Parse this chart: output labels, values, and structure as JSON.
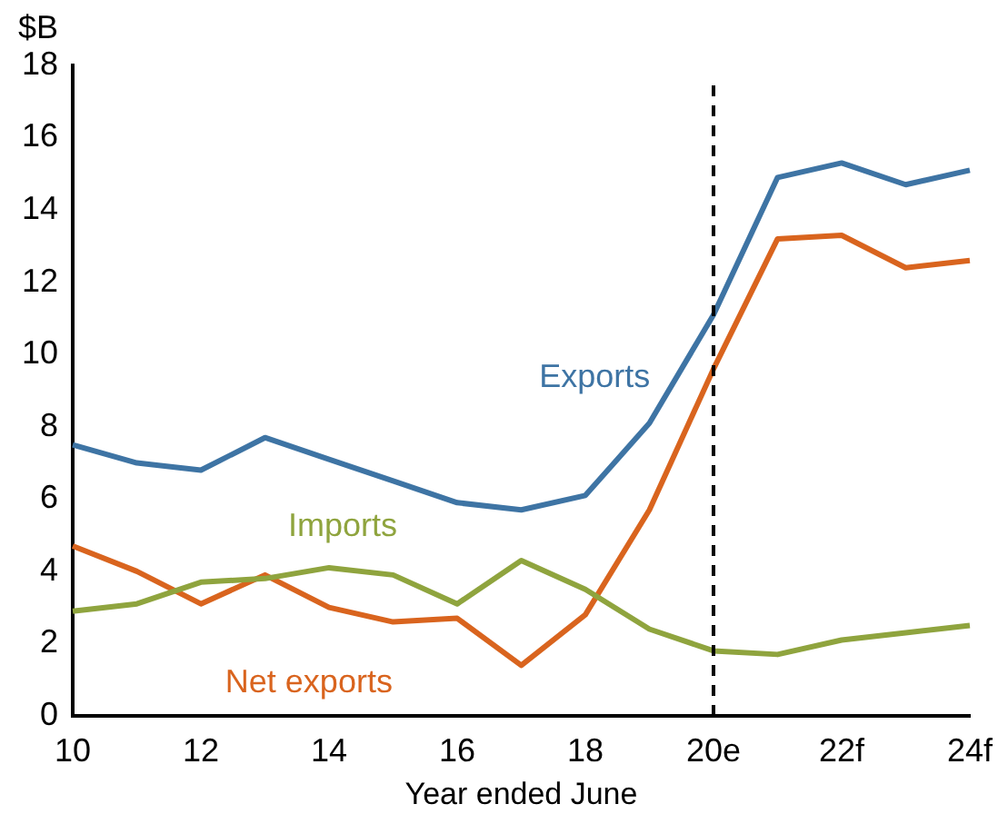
{
  "chart_data": {
    "type": "line",
    "ylabel": "$B",
    "xlabel": "Year ended June",
    "categories": [
      "10",
      null,
      "12",
      null,
      "14",
      null,
      "16",
      null,
      "18",
      null,
      "20e",
      null,
      "22f",
      null,
      "24f"
    ],
    "series": [
      {
        "name": "Exports",
        "color": "#3e74a4",
        "values": [
          7.5,
          7.0,
          6.8,
          7.7,
          7.1,
          6.5,
          5.9,
          5.7,
          6.1,
          8.1,
          11.1,
          14.9,
          15.3,
          14.7,
          15.1
        ]
      },
      {
        "name": "Imports",
        "color": "#8fa43e",
        "values": [
          2.9,
          3.1,
          3.7,
          3.8,
          4.1,
          3.9,
          3.1,
          4.3,
          3.5,
          2.4,
          1.8,
          1.7,
          2.1,
          2.3,
          2.5
        ]
      },
      {
        "name": "Net exports",
        "color": "#d9641e",
        "values": [
          4.7,
          4.0,
          3.1,
          3.9,
          3.0,
          2.6,
          2.7,
          1.4,
          2.8,
          5.7,
          9.6,
          13.2,
          13.3,
          12.4,
          12.6
        ]
      }
    ],
    "ylim": [
      0,
      18
    ],
    "yticks": [
      0,
      2,
      4,
      6,
      8,
      10,
      12,
      14,
      16,
      18
    ],
    "grid": false,
    "legend": false,
    "marker": "none",
    "line_style": "solid",
    "ref_lines": [
      {
        "axis": "x",
        "value": "20e",
        "line_style": "dashed",
        "color": "#000000"
      }
    ]
  }
}
